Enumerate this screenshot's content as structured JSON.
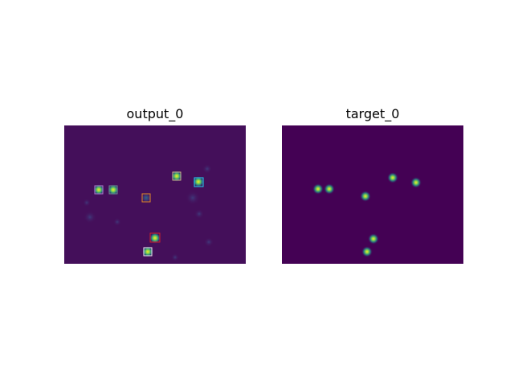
{
  "panels": {
    "left": {
      "title": "output_0",
      "background_color": "#440f5a",
      "detections": [
        {
          "id": "d1",
          "box_color": "#b07fd0"
        },
        {
          "id": "d2",
          "box_color": "#6c8c8f"
        },
        {
          "id": "d3",
          "box_color": "#e08a28"
        },
        {
          "id": "d4",
          "box_color": "#c9b98b"
        },
        {
          "id": "d5",
          "box_color": "#20d2f0"
        },
        {
          "id": "d6",
          "box_color": "#d0202a"
        },
        {
          "id": "d7",
          "box_color": "#f2f2f2"
        }
      ]
    },
    "right": {
      "title": "target_0",
      "background_color": "#440154"
    }
  },
  "colors": {
    "spot_core": "#fde725",
    "spot_mid": "#35b779",
    "spot_outer": "#31688e"
  }
}
